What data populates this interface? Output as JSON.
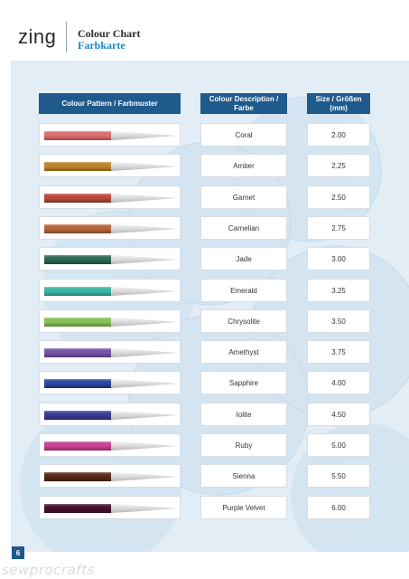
{
  "header": {
    "logo": "zing",
    "title_en": "Colour Chart",
    "title_de": "Farbkarte"
  },
  "table": {
    "col_pattern": "Colour Pattern / Farbmuster",
    "col_description": "Colour Description / Farbe",
    "col_size": "Size / Größen (mm)",
    "rows": [
      {
        "name": "Coral",
        "size": "2.00",
        "color": "#e87070"
      },
      {
        "name": "Amber",
        "size": "2.25",
        "color": "#c98a2a"
      },
      {
        "name": "Garnet",
        "size": "2.50",
        "color": "#c24a3a"
      },
      {
        "name": "Carnelian",
        "size": "2.75",
        "color": "#c1683e"
      },
      {
        "name": "Jade",
        "size": "3.00",
        "color": "#2f6b5a"
      },
      {
        "name": "Emerald",
        "size": "3.25",
        "color": "#3cbfa8"
      },
      {
        "name": "Chrysolite",
        "size": "3.50",
        "color": "#8acb5c"
      },
      {
        "name": "Amethyst",
        "size": "3.75",
        "color": "#7a55b0"
      },
      {
        "name": "Sapphire",
        "size": "4.00",
        "color": "#2d49a8"
      },
      {
        "name": "Iolite",
        "size": "4.50",
        "color": "#3c3f9c"
      },
      {
        "name": "Ruby",
        "size": "5.00",
        "color": "#d2439a"
      },
      {
        "name": "Sienna",
        "size": "5.50",
        "color": "#5a2a18"
      },
      {
        "name": "Purple Velvet",
        "size": "6.00",
        "color": "#4a1030"
      }
    ]
  },
  "page_number": "6",
  "watermark": "sewprocrafts",
  "colors": {
    "header_bg": "#1e5a8c",
    "accent_blue": "#1e86c8",
    "page_bg": "#e2edf6"
  }
}
